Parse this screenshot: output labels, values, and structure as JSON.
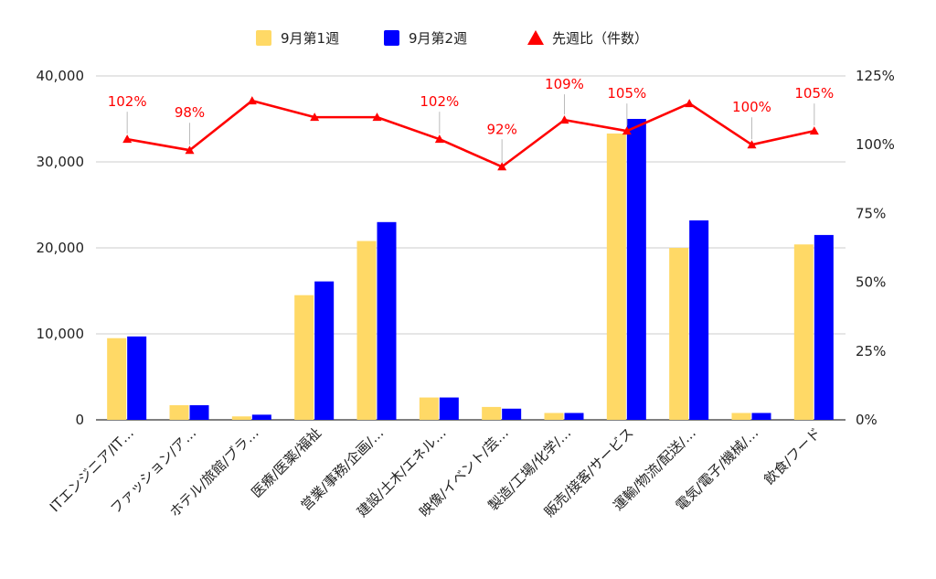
{
  "chart_data": {
    "type": "bar",
    "categories": [
      "ITエンジニア/IT…",
      "ファッション/ア…",
      "ホテル/旅館/ブラ…",
      "医療/医薬/福祉",
      "営業/事務/企画/…",
      "建設/土木/エネル…",
      "映像/イベント/芸…",
      "製造/工場/化学/…",
      "販売/接客/サービス",
      "運輸/物流/配送/…",
      "電気/電子/機械/…",
      "飲食/フード"
    ],
    "series": [
      {
        "name": "9月第1週",
        "type": "bar",
        "axis": "left",
        "color": "#FFD966",
        "values": [
          9500,
          1700,
          400,
          14500,
          20800,
          2600,
          1500,
          800,
          33300,
          20000,
          800,
          20400
        ]
      },
      {
        "name": "9月第2週",
        "type": "bar",
        "axis": "left",
        "color": "#0000FF",
        "values": [
          9700,
          1700,
          600,
          16100,
          23000,
          2600,
          1300,
          800,
          35000,
          23200,
          800,
          21500
        ]
      },
      {
        "name": "先週比（件数）",
        "type": "line",
        "axis": "right",
        "color": "#FF0000",
        "values": [
          102,
          98,
          116,
          110,
          110,
          102,
          92,
          109,
          105,
          115,
          100,
          105
        ]
      }
    ],
    "point_labels": [
      "102%",
      "98%",
      "",
      "",
      "",
      "102%",
      "92%",
      "109%",
      "105%",
      "",
      "100%",
      "105%"
    ],
    "y_left": {
      "min": 0,
      "max": 40000,
      "ticks": [
        "0",
        "10,000",
        "20,000",
        "30,000",
        "40,000"
      ],
      "tick_values": [
        0,
        10000,
        20000,
        30000,
        40000
      ]
    },
    "y_right": {
      "min": 0,
      "max": 125,
      "ticks": [
        "0%",
        "25%",
        "50%",
        "75%",
        "100%",
        "125%"
      ],
      "tick_values": [
        0,
        25,
        50,
        75,
        100,
        125
      ]
    },
    "grid": true,
    "legend_position": "top"
  }
}
